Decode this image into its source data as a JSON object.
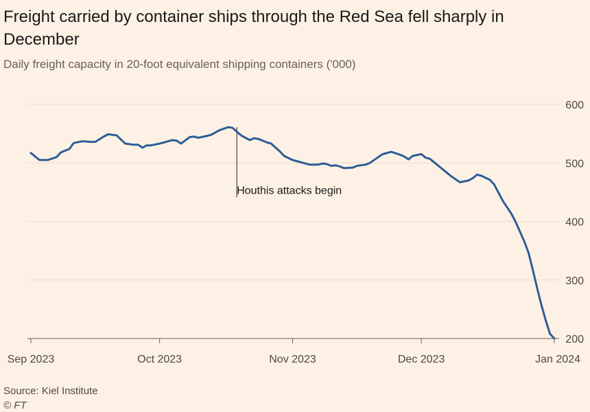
{
  "header": {
    "title": "Freight carried by container ships through the Red Sea fell sharply in December",
    "subtitle": "Daily freight capacity in 20-foot equivalent shipping containers ('000)"
  },
  "footer": {
    "source": "Source: Kiel Institute",
    "copyright": "© FT"
  },
  "colors": {
    "background": "#fdf1e5",
    "line": "#2d5d96",
    "grid": "#e9ddd2",
    "axis": "#66605c"
  },
  "chart_data": {
    "type": "line",
    "title": "Freight carried by container ships through the Red Sea fell sharply in December",
    "subtitle": "Daily freight capacity in 20-foot equivalent shipping containers ('000)",
    "xlabel": "",
    "ylabel": "",
    "ylim": [
      200,
      600
    ],
    "xlim": [
      0,
      122
    ],
    "yticks": [
      {
        "value": 600,
        "label": "600"
      },
      {
        "value": 500,
        "label": "500"
      },
      {
        "value": 400,
        "label": "400"
      },
      {
        "value": 300,
        "label": "300"
      },
      {
        "value": 200,
        "label": "200"
      }
    ],
    "xticks": [
      {
        "day": 0,
        "label": "Sep 2023"
      },
      {
        "day": 30,
        "label": "Oct 2023"
      },
      {
        "day": 61,
        "label": "Nov 2023"
      },
      {
        "day": 91,
        "label": "Dec 2023"
      },
      {
        "day": 122,
        "label": "Jan 2024"
      }
    ],
    "grid": true,
    "annotations": [
      {
        "day": 48,
        "value": 561,
        "label_value": 446,
        "text": "Houthis attacks begin"
      }
    ],
    "series": [
      {
        "name": "Daily freight capacity",
        "points": [
          [
            0,
            517
          ],
          [
            2,
            505
          ],
          [
            4,
            505
          ],
          [
            6,
            510
          ],
          [
            7,
            518
          ],
          [
            9,
            524
          ],
          [
            10,
            534
          ],
          [
            12,
            537
          ],
          [
            14,
            536
          ],
          [
            15,
            536
          ],
          [
            17,
            545
          ],
          [
            18,
            549
          ],
          [
            20,
            547
          ],
          [
            21,
            540
          ],
          [
            22,
            533
          ],
          [
            24,
            531
          ],
          [
            25,
            531
          ],
          [
            26,
            526
          ],
          [
            27,
            530
          ],
          [
            28,
            530
          ],
          [
            30,
            533
          ],
          [
            31,
            535
          ],
          [
            33,
            539
          ],
          [
            34,
            538
          ],
          [
            35,
            533
          ],
          [
            37,
            544
          ],
          [
            38,
            545
          ],
          [
            39,
            543
          ],
          [
            41,
            546
          ],
          [
            42,
            548
          ],
          [
            44,
            556
          ],
          [
            46,
            561
          ],
          [
            47,
            560
          ],
          [
            49,
            547
          ],
          [
            51,
            539
          ],
          [
            52,
            542
          ],
          [
            53,
            541
          ],
          [
            55,
            535
          ],
          [
            56,
            533
          ],
          [
            58,
            520
          ],
          [
            59,
            512
          ],
          [
            61,
            505
          ],
          [
            63,
            501
          ],
          [
            65,
            497
          ],
          [
            67,
            497
          ],
          [
            68,
            499
          ],
          [
            69,
            498
          ],
          [
            70,
            495
          ],
          [
            71,
            496
          ],
          [
            72,
            494
          ],
          [
            73,
            491
          ],
          [
            75,
            492
          ],
          [
            76,
            495
          ],
          [
            78,
            497
          ],
          [
            79,
            500
          ],
          [
            81,
            510
          ],
          [
            82,
            515
          ],
          [
            84,
            519
          ],
          [
            86,
            514
          ],
          [
            87,
            511
          ],
          [
            88,
            506
          ],
          [
            89,
            512
          ],
          [
            91,
            515
          ],
          [
            92,
            509
          ],
          [
            93,
            507
          ],
          [
            95,
            495
          ],
          [
            97,
            483
          ],
          [
            98,
            477
          ],
          [
            100,
            467
          ],
          [
            102,
            470
          ],
          [
            103,
            474
          ],
          [
            104,
            480
          ],
          [
            105,
            478
          ],
          [
            107,
            471
          ],
          [
            108,
            463
          ],
          [
            110,
            435
          ],
          [
            112,
            413
          ],
          [
            113,
            399
          ],
          [
            115,
            366
          ],
          [
            116,
            346
          ],
          [
            117,
            317
          ],
          [
            118,
            286
          ],
          [
            119,
            257
          ],
          [
            120,
            231
          ],
          [
            121,
            208
          ],
          [
            122,
            200
          ]
        ]
      }
    ]
  }
}
